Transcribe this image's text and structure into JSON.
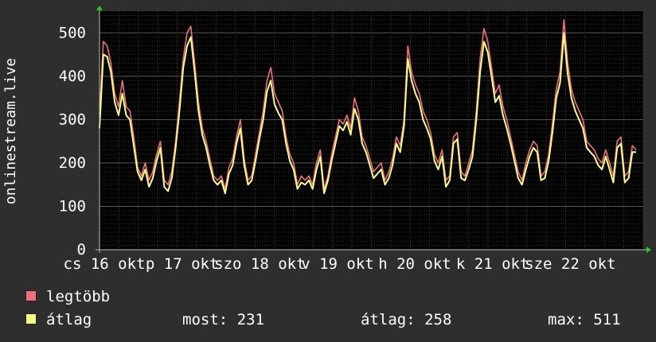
{
  "chart_data": {
    "type": "line",
    "ylabel": "onlinestream.live",
    "ylim": [
      0,
      550
    ],
    "yticks": [
      0,
      100,
      200,
      300,
      400,
      500
    ],
    "xlim": [
      0,
      100
    ],
    "xtick_labels": [
      {
        "at": 0,
        "label": "cs 16 okt"
      },
      {
        "at": 14.3,
        "label": "p 17 okt"
      },
      {
        "at": 28.6,
        "label": "szo 18 okt"
      },
      {
        "at": 42.9,
        "label": "v 19 okt"
      },
      {
        "at": 57.1,
        "label": "h 20 okt"
      },
      {
        "at": 71.4,
        "label": "k 21 okt"
      },
      {
        "at": 85.7,
        "label": "sze 22 okt"
      }
    ],
    "grid": true,
    "series": [
      {
        "name": "legtöbb",
        "color": "#f0707c",
        "points": [
          [
            0,
            310
          ],
          [
            0.7,
            480
          ],
          [
            1.4,
            470
          ],
          [
            2.1,
            430
          ],
          [
            2.8,
            360
          ],
          [
            3.5,
            330
          ],
          [
            4.2,
            390
          ],
          [
            4.9,
            330
          ],
          [
            5.6,
            320
          ],
          [
            6.3,
            260
          ],
          [
            7,
            190
          ],
          [
            7.7,
            170
          ],
          [
            8.4,
            200
          ],
          [
            9.1,
            160
          ],
          [
            9.8,
            180
          ],
          [
            10.5,
            220
          ],
          [
            11.2,
            250
          ],
          [
            11.9,
            160
          ],
          [
            12.6,
            150
          ],
          [
            13.3,
            180
          ],
          [
            14,
            250
          ],
          [
            14.7,
            340
          ],
          [
            15.4,
            440
          ],
          [
            16.1,
            500
          ],
          [
            16.8,
            515
          ],
          [
            17.5,
            430
          ],
          [
            18.2,
            340
          ],
          [
            18.9,
            280
          ],
          [
            19.6,
            250
          ],
          [
            20.3,
            210
          ],
          [
            21,
            170
          ],
          [
            21.7,
            160
          ],
          [
            22.4,
            170
          ],
          [
            23.1,
            140
          ],
          [
            23.8,
            190
          ],
          [
            24.5,
            210
          ],
          [
            25.2,
            260
          ],
          [
            25.9,
            300
          ],
          [
            26.6,
            210
          ],
          [
            27.3,
            160
          ],
          [
            28,
            170
          ],
          [
            28.7,
            220
          ],
          [
            29.4,
            270
          ],
          [
            30.1,
            320
          ],
          [
            30.8,
            390
          ],
          [
            31.5,
            420
          ],
          [
            32.2,
            360
          ],
          [
            32.9,
            340
          ],
          [
            33.6,
            320
          ],
          [
            34.3,
            260
          ],
          [
            35,
            220
          ],
          [
            35.7,
            200
          ],
          [
            36.4,
            150
          ],
          [
            37.1,
            170
          ],
          [
            37.8,
            160
          ],
          [
            38.5,
            170
          ],
          [
            39.2,
            150
          ],
          [
            39.9,
            200
          ],
          [
            40.6,
            230
          ],
          [
            41.3,
            140
          ],
          [
            42,
            170
          ],
          [
            42.7,
            220
          ],
          [
            43.4,
            260
          ],
          [
            44.1,
            300
          ],
          [
            44.8,
            290
          ],
          [
            45.5,
            310
          ],
          [
            46.2,
            280
          ],
          [
            46.9,
            350
          ],
          [
            47.6,
            320
          ],
          [
            48.3,
            260
          ],
          [
            49,
            240
          ],
          [
            49.7,
            210
          ],
          [
            50.4,
            180
          ],
          [
            51.1,
            190
          ],
          [
            51.8,
            200
          ],
          [
            52.5,
            160
          ],
          [
            53.2,
            180
          ],
          [
            53.9,
            210
          ],
          [
            54.6,
            260
          ],
          [
            55.3,
            240
          ],
          [
            56,
            300
          ],
          [
            56.7,
            470
          ],
          [
            57.4,
            410
          ],
          [
            58.1,
            380
          ],
          [
            58.8,
            360
          ],
          [
            59.5,
            320
          ],
          [
            60.2,
            300
          ],
          [
            60.9,
            270
          ],
          [
            61.6,
            220
          ],
          [
            62.3,
            200
          ],
          [
            63,
            230
          ],
          [
            63.7,
            160
          ],
          [
            64.4,
            170
          ],
          [
            65.1,
            260
          ],
          [
            65.8,
            270
          ],
          [
            66.5,
            180
          ],
          [
            67.2,
            170
          ],
          [
            67.9,
            200
          ],
          [
            68.6,
            230
          ],
          [
            69.3,
            320
          ],
          [
            70,
            440
          ],
          [
            70.7,
            510
          ],
          [
            71.4,
            480
          ],
          [
            72.1,
            420
          ],
          [
            72.8,
            360
          ],
          [
            73.5,
            380
          ],
          [
            74.2,
            330
          ],
          [
            74.9,
            300
          ],
          [
            75.6,
            260
          ],
          [
            76.3,
            220
          ],
          [
            77,
            180
          ],
          [
            77.7,
            160
          ],
          [
            78.4,
            200
          ],
          [
            79.1,
            230
          ],
          [
            79.8,
            250
          ],
          [
            80.5,
            240
          ],
          [
            81.2,
            170
          ],
          [
            81.9,
            180
          ],
          [
            82.6,
            220
          ],
          [
            83.3,
            290
          ],
          [
            84,
            370
          ],
          [
            84.7,
            410
          ],
          [
            85.4,
            530
          ],
          [
            86.1,
            430
          ],
          [
            86.8,
            370
          ],
          [
            87.5,
            340
          ],
          [
            88.2,
            320
          ],
          [
            88.9,
            300
          ],
          [
            89.6,
            250
          ],
          [
            90.3,
            240
          ],
          [
            91,
            230
          ],
          [
            91.7,
            210
          ],
          [
            92.4,
            200
          ],
          [
            93.1,
            230
          ],
          [
            93.8,
            200
          ],
          [
            94.5,
            170
          ],
          [
            95.2,
            250
          ],
          [
            95.9,
            260
          ],
          [
            96.6,
            170
          ],
          [
            97.3,
            180
          ],
          [
            98,
            240
          ],
          [
            98.7,
            230
          ]
        ]
      },
      {
        "name": "átlag",
        "color": "#ffff80",
        "points": [
          [
            0,
            280
          ],
          [
            0.7,
            450
          ],
          [
            1.4,
            445
          ],
          [
            2.1,
            410
          ],
          [
            2.8,
            340
          ],
          [
            3.5,
            310
          ],
          [
            4.2,
            360
          ],
          [
            4.9,
            310
          ],
          [
            5.6,
            300
          ],
          [
            6.3,
            240
          ],
          [
            7,
            180
          ],
          [
            7.7,
            160
          ],
          [
            8.4,
            185
          ],
          [
            9.1,
            145
          ],
          [
            9.8,
            165
          ],
          [
            10.5,
            205
          ],
          [
            11.2,
            235
          ],
          [
            11.9,
            145
          ],
          [
            12.6,
            135
          ],
          [
            13.3,
            165
          ],
          [
            14,
            235
          ],
          [
            14.7,
            320
          ],
          [
            15.4,
            420
          ],
          [
            16.1,
            470
          ],
          [
            16.8,
            490
          ],
          [
            17.5,
            410
          ],
          [
            18.2,
            320
          ],
          [
            18.9,
            265
          ],
          [
            19.6,
            235
          ],
          [
            20.3,
            195
          ],
          [
            21,
            160
          ],
          [
            21.7,
            150
          ],
          [
            22.4,
            160
          ],
          [
            23.1,
            130
          ],
          [
            23.8,
            175
          ],
          [
            24.5,
            195
          ],
          [
            25.2,
            245
          ],
          [
            25.9,
            280
          ],
          [
            26.6,
            195
          ],
          [
            27.3,
            150
          ],
          [
            28,
            160
          ],
          [
            28.7,
            205
          ],
          [
            29.4,
            255
          ],
          [
            30.1,
            300
          ],
          [
            30.8,
            365
          ],
          [
            31.5,
            390
          ],
          [
            32.2,
            335
          ],
          [
            32.9,
            315
          ],
          [
            33.6,
            300
          ],
          [
            34.3,
            245
          ],
          [
            35,
            205
          ],
          [
            35.7,
            185
          ],
          [
            36.4,
            140
          ],
          [
            37.1,
            155
          ],
          [
            37.8,
            150
          ],
          [
            38.5,
            160
          ],
          [
            39.2,
            140
          ],
          [
            39.9,
            185
          ],
          [
            40.6,
            215
          ],
          [
            41.3,
            130
          ],
          [
            42,
            160
          ],
          [
            42.7,
            205
          ],
          [
            43.4,
            245
          ],
          [
            44.1,
            285
          ],
          [
            44.8,
            275
          ],
          [
            45.5,
            295
          ],
          [
            46.2,
            265
          ],
          [
            46.9,
            325
          ],
          [
            47.6,
            300
          ],
          [
            48.3,
            245
          ],
          [
            49,
            225
          ],
          [
            49.7,
            195
          ],
          [
            50.4,
            165
          ],
          [
            51.1,
            175
          ],
          [
            51.8,
            185
          ],
          [
            52.5,
            150
          ],
          [
            53.2,
            165
          ],
          [
            53.9,
            195
          ],
          [
            54.6,
            245
          ],
          [
            55.3,
            225
          ],
          [
            56,
            285
          ],
          [
            56.7,
            440
          ],
          [
            57.4,
            390
          ],
          [
            58.1,
            360
          ],
          [
            58.8,
            340
          ],
          [
            59.5,
            300
          ],
          [
            60.2,
            280
          ],
          [
            60.9,
            255
          ],
          [
            61.6,
            205
          ],
          [
            62.3,
            185
          ],
          [
            63,
            215
          ],
          [
            63.7,
            145
          ],
          [
            64.4,
            160
          ],
          [
            65.1,
            245
          ],
          [
            65.8,
            255
          ],
          [
            66.5,
            165
          ],
          [
            67.2,
            160
          ],
          [
            67.9,
            185
          ],
          [
            68.6,
            215
          ],
          [
            69.3,
            300
          ],
          [
            70,
            410
          ],
          [
            70.7,
            480
          ],
          [
            71.4,
            455
          ],
          [
            72.1,
            400
          ],
          [
            72.8,
            340
          ],
          [
            73.5,
            355
          ],
          [
            74.2,
            310
          ],
          [
            74.9,
            280
          ],
          [
            75.6,
            245
          ],
          [
            76.3,
            205
          ],
          [
            77,
            165
          ],
          [
            77.7,
            150
          ],
          [
            78.4,
            185
          ],
          [
            79.1,
            215
          ],
          [
            79.8,
            235
          ],
          [
            80.5,
            225
          ],
          [
            81.2,
            160
          ],
          [
            81.9,
            165
          ],
          [
            82.6,
            205
          ],
          [
            83.3,
            270
          ],
          [
            84,
            350
          ],
          [
            84.7,
            385
          ],
          [
            85.4,
            500
          ],
          [
            86.1,
            405
          ],
          [
            86.8,
            350
          ],
          [
            87.5,
            320
          ],
          [
            88.2,
            300
          ],
          [
            88.9,
            280
          ],
          [
            89.6,
            235
          ],
          [
            90.3,
            225
          ],
          [
            91,
            215
          ],
          [
            91.7,
            195
          ],
          [
            92.4,
            185
          ],
          [
            93.1,
            215
          ],
          [
            93.8,
            185
          ],
          [
            94.5,
            155
          ],
          [
            95.2,
            235
          ],
          [
            95.9,
            245
          ],
          [
            96.6,
            155
          ],
          [
            97.3,
            165
          ],
          [
            98,
            225
          ],
          [
            98.7,
            225
          ]
        ]
      }
    ]
  },
  "legend": [
    {
      "label": "legtöbb",
      "color": "#f0707c"
    },
    {
      "label": "átlag",
      "color": "#ffff80"
    }
  ],
  "stats": {
    "now": "most: 231",
    "avg": "átlag: 258",
    "max": "max: 511"
  }
}
